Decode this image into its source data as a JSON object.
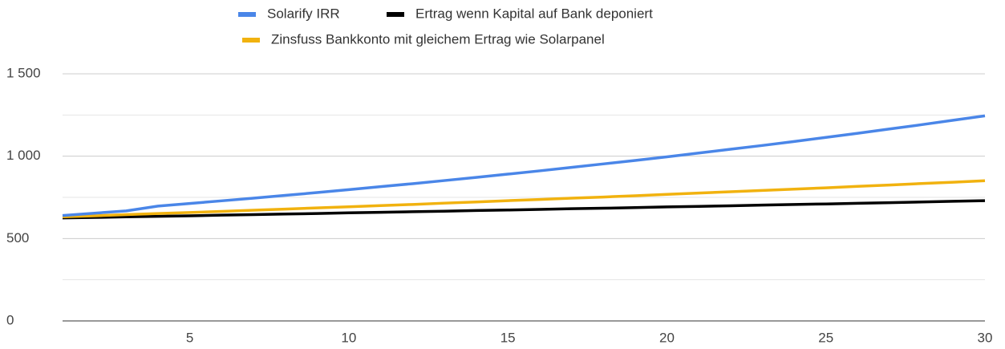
{
  "chart_data": {
    "type": "line",
    "x": [
      1,
      2,
      3,
      4,
      5,
      6,
      7,
      8,
      9,
      10,
      11,
      12,
      13,
      14,
      15,
      16,
      17,
      18,
      19,
      20,
      21,
      22,
      23,
      24,
      25,
      26,
      27,
      28,
      29,
      30
    ],
    "series": [
      {
        "name": "Solarify IRR",
        "color": "#4a86e8",
        "values": [
          640,
          654,
          668,
          697,
          713,
          729,
          745,
          762,
          779,
          797,
          815,
          833,
          852,
          871,
          891,
          911,
          932,
          953,
          974,
          996,
          1019,
          1042,
          1065,
          1089,
          1114,
          1139,
          1165,
          1191,
          1218,
          1245
        ]
      },
      {
        "name": "Ertrag wenn Kapital auf Bank deponiert",
        "color": "#000000",
        "values": [
          625,
          628,
          632,
          635,
          638,
          642,
          645,
          649,
          652,
          656,
          659,
          663,
          666,
          670,
          673,
          677,
          681,
          684,
          688,
          692,
          695,
          699,
          703,
          707,
          710,
          714,
          718,
          722,
          726,
          730
        ]
      },
      {
        "name": "Zinsfuss Bankkonto mit gleichem Ertrag wie Solarpanel",
        "color": "#f1b20f",
        "values": [
          632,
          638,
          645,
          652,
          658,
          665,
          672,
          679,
          686,
          693,
          700,
          707,
          715,
          722,
          730,
          737,
          745,
          752,
          760,
          768,
          776,
          784,
          792,
          800,
          808,
          817,
          825,
          834,
          842,
          851
        ]
      }
    ],
    "xlim": [
      1,
      30
    ],
    "xticks": [
      5,
      10,
      15,
      20,
      25,
      30
    ],
    "ylim": [
      0,
      1500
    ],
    "yticks": [
      0,
      500,
      {
        "value": 1000,
        "label": "1 000"
      },
      {
        "value": 1500,
        "label": "1 500"
      }
    ],
    "yminorticks": [
      250,
      750,
      1250
    ],
    "grid": true,
    "legend": "top"
  }
}
